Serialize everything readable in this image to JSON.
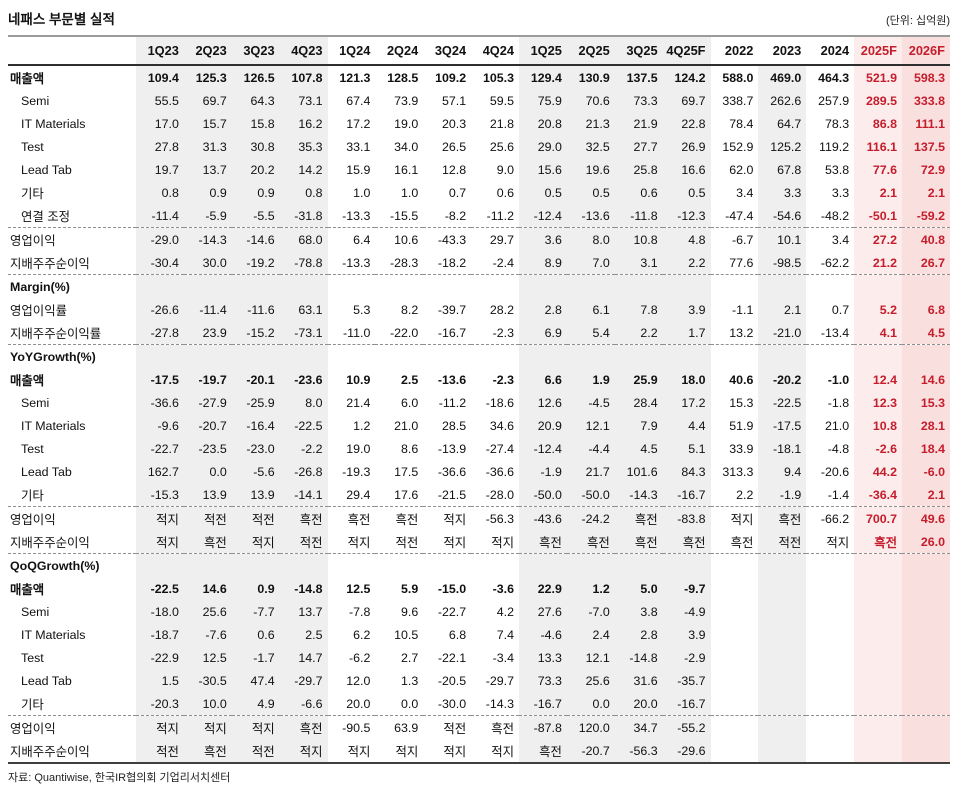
{
  "title": "네패스 부문별 실적",
  "unit_note": "(단위: 십억원)",
  "footer": "자료: Quantiwise, 한국IR협의회 기업리서치센터",
  "colors": {
    "accent_red": "#c51d2c",
    "band_gray": "#efefef",
    "band_pink_2025": "#fcedec",
    "band_pink_2026": "#f9e0de"
  },
  "table": {
    "columns": [
      "1Q23",
      "2Q23",
      "3Q23",
      "4Q23",
      "1Q24",
      "2Q24",
      "3Q24",
      "4Q24",
      "1Q25",
      "2Q25",
      "3Q25",
      "4Q25F",
      "2022",
      "2023",
      "2024",
      "2025F",
      "2026F"
    ],
    "forecast_columns": [
      "2025F",
      "2026F"
    ],
    "sections": [
      {
        "header": null,
        "groups": [
          {
            "rows": [
              {
                "label": "매출액",
                "bold": true,
                "indent": false,
                "values": [
                  "109.4",
                  "125.3",
                  "126.5",
                  "107.8",
                  "121.3",
                  "128.5",
                  "109.2",
                  "105.3",
                  "129.4",
                  "130.9",
                  "137.5",
                  "124.2",
                  "588.0",
                  "469.0",
                  "464.3",
                  "521.9",
                  "598.3"
                ]
              },
              {
                "label": "Semi",
                "bold": false,
                "indent": true,
                "values": [
                  "55.5",
                  "69.7",
                  "64.3",
                  "73.1",
                  "67.4",
                  "73.9",
                  "57.1",
                  "59.5",
                  "75.9",
                  "70.6",
                  "73.3",
                  "69.7",
                  "338.7",
                  "262.6",
                  "257.9",
                  "289.5",
                  "333.8"
                ]
              },
              {
                "label": "IT Materials",
                "bold": false,
                "indent": true,
                "values": [
                  "17.0",
                  "15.7",
                  "15.8",
                  "16.2",
                  "17.2",
                  "19.0",
                  "20.3",
                  "21.8",
                  "20.8",
                  "21.3",
                  "21.9",
                  "22.8",
                  "78.4",
                  "64.7",
                  "78.3",
                  "86.8",
                  "111.1"
                ]
              },
              {
                "label": "Test",
                "bold": false,
                "indent": true,
                "values": [
                  "27.8",
                  "31.3",
                  "30.8",
                  "35.3",
                  "33.1",
                  "34.0",
                  "26.5",
                  "25.6",
                  "29.0",
                  "32.5",
                  "27.7",
                  "26.9",
                  "152.9",
                  "125.2",
                  "119.2",
                  "116.1",
                  "137.5"
                ]
              },
              {
                "label": "Lead Tab",
                "bold": false,
                "indent": true,
                "values": [
                  "19.7",
                  "13.7",
                  "20.2",
                  "14.2",
                  "15.9",
                  "16.1",
                  "12.8",
                  "9.0",
                  "15.6",
                  "19.6",
                  "25.8",
                  "16.6",
                  "62.0",
                  "67.8",
                  "53.8",
                  "77.6",
                  "72.9"
                ]
              },
              {
                "label": "기타",
                "bold": false,
                "indent": true,
                "values": [
                  "0.8",
                  "0.9",
                  "0.9",
                  "0.8",
                  "1.0",
                  "1.0",
                  "0.7",
                  "0.6",
                  "0.5",
                  "0.5",
                  "0.6",
                  "0.5",
                  "3.4",
                  "3.3",
                  "3.3",
                  "2.1",
                  "2.1"
                ]
              },
              {
                "label": "연결 조정",
                "bold": false,
                "indent": true,
                "values": [
                  "-11.4",
                  "-5.9",
                  "-5.5",
                  "-31.8",
                  "-13.3",
                  "-15.5",
                  "-8.2",
                  "-11.2",
                  "-12.4",
                  "-13.6",
                  "-11.8",
                  "-12.3",
                  "-47.4",
                  "-54.6",
                  "-48.2",
                  "-50.1",
                  "-59.2"
                ]
              }
            ]
          },
          {
            "rows": [
              {
                "label": "영업이익",
                "bold": false,
                "indent": false,
                "values": [
                  "-29.0",
                  "-14.3",
                  "-14.6",
                  "68.0",
                  "6.4",
                  "10.6",
                  "-43.3",
                  "29.7",
                  "3.6",
                  "8.0",
                  "10.8",
                  "4.8",
                  "-6.7",
                  "10.1",
                  "3.4",
                  "27.2",
                  "40.8"
                ]
              },
              {
                "label": "지배주주순이익",
                "bold": false,
                "indent": false,
                "values": [
                  "-30.4",
                  "30.0",
                  "-19.2",
                  "-78.8",
                  "-13.3",
                  "-28.3",
                  "-18.2",
                  "-2.4",
                  "8.9",
                  "7.0",
                  "3.1",
                  "2.2",
                  "77.6",
                  "-98.5",
                  "-62.2",
                  "21.2",
                  "26.7"
                ]
              }
            ]
          }
        ]
      },
      {
        "header": "Margin(%)",
        "groups": [
          {
            "rows": [
              {
                "label": "영업이익률",
                "bold": false,
                "indent": false,
                "values": [
                  "-26.6",
                  "-11.4",
                  "-11.6",
                  "63.1",
                  "5.3",
                  "8.2",
                  "-39.7",
                  "28.2",
                  "2.8",
                  "6.1",
                  "7.8",
                  "3.9",
                  "-1.1",
                  "2.1",
                  "0.7",
                  "5.2",
                  "6.8"
                ]
              },
              {
                "label": "지배주주순이익률",
                "bold": false,
                "indent": false,
                "values": [
                  "-27.8",
                  "23.9",
                  "-15.2",
                  "-73.1",
                  "-11.0",
                  "-22.0",
                  "-16.7",
                  "-2.3",
                  "6.9",
                  "5.4",
                  "2.2",
                  "1.7",
                  "13.2",
                  "-21.0",
                  "-13.4",
                  "4.1",
                  "4.5"
                ]
              }
            ]
          }
        ]
      },
      {
        "header": "YoYGrowth(%)",
        "groups": [
          {
            "rows": [
              {
                "label": "매출액",
                "bold": true,
                "indent": false,
                "values": [
                  "-17.5",
                  "-19.7",
                  "-20.1",
                  "-23.6",
                  "10.9",
                  "2.5",
                  "-13.6",
                  "-2.3",
                  "6.6",
                  "1.9",
                  "25.9",
                  "18.0",
                  "40.6",
                  "-20.2",
                  "-1.0",
                  "12.4",
                  "14.6"
                ]
              },
              {
                "label": "Semi",
                "bold": false,
                "indent": true,
                "values": [
                  "-36.6",
                  "-27.9",
                  "-25.9",
                  "8.0",
                  "21.4",
                  "6.0",
                  "-11.2",
                  "-18.6",
                  "12.6",
                  "-4.5",
                  "28.4",
                  "17.2",
                  "15.3",
                  "-22.5",
                  "-1.8",
                  "12.3",
                  "15.3"
                ]
              },
              {
                "label": "IT Materials",
                "bold": false,
                "indent": true,
                "values": [
                  "-9.6",
                  "-20.7",
                  "-16.4",
                  "-22.5",
                  "1.2",
                  "21.0",
                  "28.5",
                  "34.6",
                  "20.9",
                  "12.1",
                  "7.9",
                  "4.4",
                  "51.9",
                  "-17.5",
                  "21.0",
                  "10.8",
                  "28.1"
                ]
              },
              {
                "label": "Test",
                "bold": false,
                "indent": true,
                "values": [
                  "-22.7",
                  "-23.5",
                  "-23.0",
                  "-2.2",
                  "19.0",
                  "8.6",
                  "-13.9",
                  "-27.4",
                  "-12.4",
                  "-4.4",
                  "4.5",
                  "5.1",
                  "33.9",
                  "-18.1",
                  "-4.8",
                  "-2.6",
                  "18.4"
                ]
              },
              {
                "label": "Lead Tab",
                "bold": false,
                "indent": true,
                "values": [
                  "162.7",
                  "0.0",
                  "-5.6",
                  "-26.8",
                  "-19.3",
                  "17.5",
                  "-36.6",
                  "-36.6",
                  "-1.9",
                  "21.7",
                  "101.6",
                  "84.3",
                  "313.3",
                  "9.4",
                  "-20.6",
                  "44.2",
                  "-6.0"
                ]
              },
              {
                "label": "기타",
                "bold": false,
                "indent": true,
                "values": [
                  "-15.3",
                  "13.9",
                  "13.9",
                  "-14.1",
                  "29.4",
                  "17.6",
                  "-21.5",
                  "-28.0",
                  "-50.0",
                  "-50.0",
                  "-14.3",
                  "-16.7",
                  "2.2",
                  "-1.9",
                  "-1.4",
                  "-36.4",
                  "2.1"
                ]
              }
            ]
          },
          {
            "rows": [
              {
                "label": "영업이익",
                "bold": false,
                "indent": false,
                "values": [
                  "적지",
                  "적전",
                  "적전",
                  "흑전",
                  "흑전",
                  "흑전",
                  "적지",
                  "-56.3",
                  "-43.6",
                  "-24.2",
                  "흑전",
                  "-83.8",
                  "적지",
                  "흑전",
                  "-66.2",
                  "700.7",
                  "49.6"
                ]
              },
              {
                "label": "지배주주순이익",
                "bold": false,
                "indent": false,
                "values": [
                  "적지",
                  "흑전",
                  "적지",
                  "적전",
                  "적지",
                  "적전",
                  "적지",
                  "적지",
                  "흑전",
                  "흑전",
                  "흑전",
                  "흑전",
                  "흑전",
                  "적전",
                  "적지",
                  "흑전",
                  "26.0"
                ]
              }
            ]
          }
        ]
      },
      {
        "header": "QoQGrowth(%)",
        "groups": [
          {
            "rows": [
              {
                "label": "매출액",
                "bold": true,
                "indent": false,
                "values": [
                  "-22.5",
                  "14.6",
                  "0.9",
                  "-14.8",
                  "12.5",
                  "5.9",
                  "-15.0",
                  "-3.6",
                  "22.9",
                  "1.2",
                  "5.0",
                  "-9.7",
                  "",
                  "",
                  "",
                  "",
                  ""
                ]
              },
              {
                "label": "Semi",
                "bold": false,
                "indent": true,
                "values": [
                  "-18.0",
                  "25.6",
                  "-7.7",
                  "13.7",
                  "-7.8",
                  "9.6",
                  "-22.7",
                  "4.2",
                  "27.6",
                  "-7.0",
                  "3.8",
                  "-4.9",
                  "",
                  "",
                  "",
                  "",
                  ""
                ]
              },
              {
                "label": "IT Materials",
                "bold": false,
                "indent": true,
                "values": [
                  "-18.7",
                  "-7.6",
                  "0.6",
                  "2.5",
                  "6.2",
                  "10.5",
                  "6.8",
                  "7.4",
                  "-4.6",
                  "2.4",
                  "2.8",
                  "3.9",
                  "",
                  "",
                  "",
                  "",
                  ""
                ]
              },
              {
                "label": "Test",
                "bold": false,
                "indent": true,
                "values": [
                  "-22.9",
                  "12.5",
                  "-1.7",
                  "14.7",
                  "-6.2",
                  "2.7",
                  "-22.1",
                  "-3.4",
                  "13.3",
                  "12.1",
                  "-14.8",
                  "-2.9",
                  "",
                  "",
                  "",
                  "",
                  ""
                ]
              },
              {
                "label": "Lead Tab",
                "bold": false,
                "indent": true,
                "values": [
                  "1.5",
                  "-30.5",
                  "47.4",
                  "-29.7",
                  "12.0",
                  "1.3",
                  "-20.5",
                  "-29.7",
                  "73.3",
                  "25.6",
                  "31.6",
                  "-35.7",
                  "",
                  "",
                  "",
                  "",
                  ""
                ]
              },
              {
                "label": "기타",
                "bold": false,
                "indent": true,
                "values": [
                  "-20.3",
                  "10.0",
                  "4.9",
                  "-6.6",
                  "20.0",
                  "0.0",
                  "-30.0",
                  "-14.3",
                  "-16.7",
                  "0.0",
                  "20.0",
                  "-16.7",
                  "",
                  "",
                  "",
                  "",
                  ""
                ]
              }
            ]
          },
          {
            "rows": [
              {
                "label": "영업이익",
                "bold": false,
                "indent": false,
                "values": [
                  "적지",
                  "적지",
                  "적지",
                  "흑전",
                  "-90.5",
                  "63.9",
                  "적전",
                  "흑전",
                  "-87.8",
                  "120.0",
                  "34.7",
                  "-55.2",
                  "",
                  "",
                  "",
                  "",
                  ""
                ]
              },
              {
                "label": "지배주주순이익",
                "bold": false,
                "indent": false,
                "values": [
                  "적전",
                  "흑전",
                  "적전",
                  "적지",
                  "적지",
                  "적지",
                  "적지",
                  "적지",
                  "흑전",
                  "-20.7",
                  "-56.3",
                  "-29.6",
                  "",
                  "",
                  "",
                  "",
                  ""
                ]
              }
            ]
          }
        ]
      }
    ]
  }
}
